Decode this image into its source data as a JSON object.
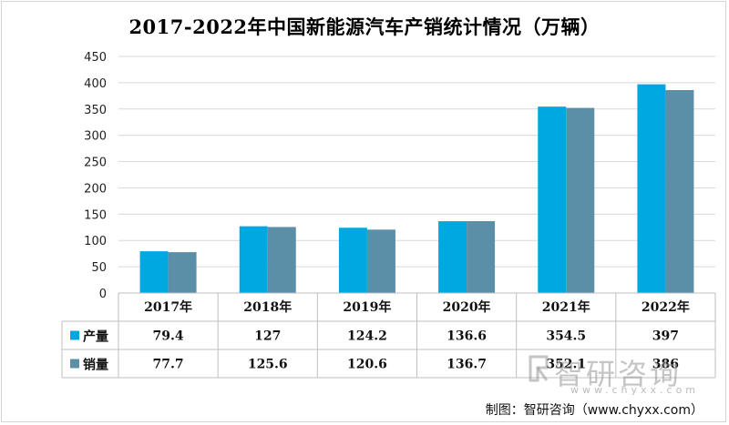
{
  "colors": {
    "production": "#00a8e1",
    "sales": "#5b8fa8",
    "grid": "#d9d9d9",
    "axis": "#888888",
    "border": "#bfbfbf"
  },
  "chart_data": {
    "type": "bar",
    "title": "2017-2022年中国新能源汽车产销统计情况（万辆）",
    "categories": [
      "2017年",
      "2018年",
      "2019年",
      "2020年",
      "2021年",
      "2022年"
    ],
    "series": [
      {
        "name": "产量",
        "values": [
          79.4,
          127,
          124.2,
          136.6,
          354.5,
          397
        ]
      },
      {
        "name": "销量",
        "values": [
          77.7,
          125.6,
          120.6,
          136.7,
          352.1,
          386
        ]
      }
    ],
    "ylim": [
      0,
      450
    ],
    "yticks": [
      0,
      50,
      100,
      150,
      200,
      250,
      300,
      350,
      400,
      450
    ],
    "table_labels": {
      "production": [
        "79.4",
        "127",
        "124.2",
        "136.6",
        "354.5",
        "397"
      ],
      "sales": [
        "77.7",
        "125.6",
        "120.6",
        "136.7",
        "352.1",
        "386"
      ]
    },
    "grid": true,
    "legend": "data-table"
  },
  "watermark": {
    "text": "智研咨询",
    "url": "www.chyxx.com"
  },
  "source": "制图：智研咨询（www.chyxx.com）"
}
